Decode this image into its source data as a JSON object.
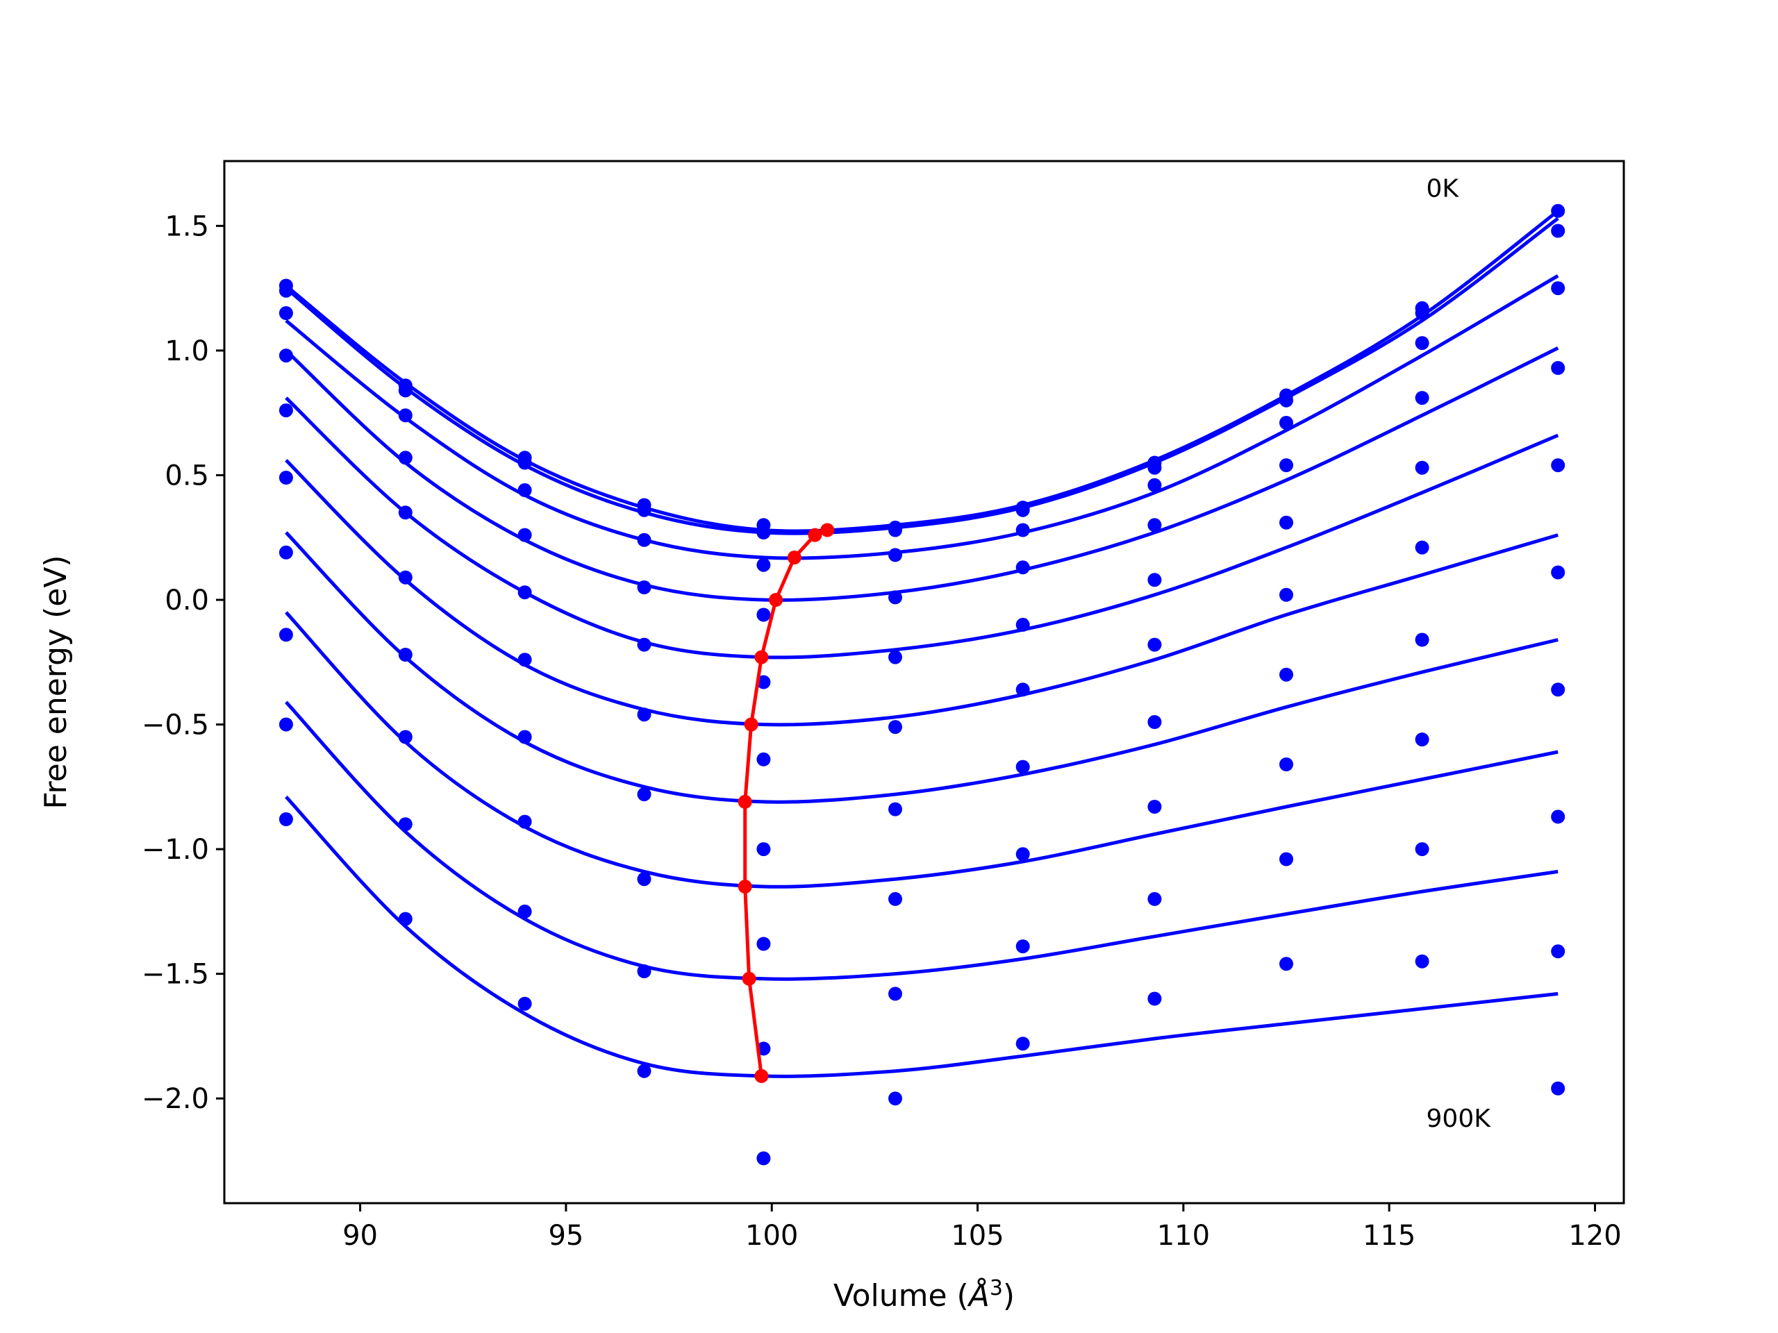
{
  "chart_data": {
    "type": "line",
    "title": "",
    "xlabel": "Volume (",
    "xlabel_unit": "Å",
    "xlabel_exponent": "3",
    "xlabel_close": ")",
    "ylabel": "Free energy (eV)",
    "xlim": [
      86.7,
      120.7
    ],
    "ylim": [
      -2.42,
      1.76
    ],
    "xticks": [
      90,
      95,
      100,
      105,
      110,
      115,
      120
    ],
    "xtick_labels": [
      "90",
      "95",
      "100",
      "105",
      "110",
      "115",
      "120"
    ],
    "yticks": [
      1.5,
      1.0,
      0.5,
      0.0,
      -0.5,
      -1.0,
      -1.5,
      -2.0
    ],
    "ytick_labels": [
      "1.5",
      "1.0",
      "0.5",
      "0.0",
      "−0.5",
      "−1.0",
      "−1.5",
      "−2.0"
    ],
    "grid": false,
    "annotations": [
      {
        "text": "0K",
        "x": 115.9,
        "y": 1.65
      },
      {
        "text": "900K",
        "x": 115.9,
        "y": -2.08
      }
    ],
    "colors": {
      "fit": "#0000ff",
      "data": "#0000ff",
      "minimum": "#ff0000"
    },
    "volumes": [
      88.2,
      91.1,
      94.0,
      96.9,
      99.8,
      103.0,
      106.1,
      109.3,
      112.5,
      115.8,
      119.1
    ],
    "series": [
      {
        "kind": "data",
        "values": [
          1.26,
          0.86,
          0.57,
          0.38,
          0.3,
          0.29,
          0.37,
          0.55,
          0.82,
          1.17,
          1.56
        ]
      },
      {
        "kind": "data",
        "values": [
          1.24,
          0.84,
          0.55,
          0.36,
          0.27,
          0.28,
          0.36,
          0.53,
          0.8,
          1.15,
          1.48
        ]
      },
      {
        "kind": "data",
        "values": [
          1.15,
          0.74,
          0.44,
          0.24,
          0.14,
          0.18,
          0.28,
          0.46,
          0.71,
          1.03,
          1.25
        ]
      },
      {
        "kind": "data",
        "values": [
          0.98,
          0.57,
          0.26,
          0.05,
          -0.06,
          0.01,
          0.13,
          0.3,
          0.54,
          0.81,
          0.93
        ]
      },
      {
        "kind": "data",
        "values": [
          0.76,
          0.35,
          0.03,
          -0.18,
          -0.33,
          -0.23,
          -0.1,
          0.08,
          0.31,
          0.53,
          0.54
        ]
      },
      {
        "kind": "data",
        "values": [
          0.49,
          0.09,
          -0.24,
          -0.46,
          -0.64,
          -0.51,
          -0.36,
          -0.18,
          0.02,
          0.21,
          0.11
        ]
      },
      {
        "kind": "data",
        "values": [
          0.19,
          -0.22,
          -0.55,
          -0.78,
          -1.0,
          -0.84,
          -0.67,
          -0.49,
          -0.3,
          -0.16,
          -0.36
        ]
      },
      {
        "kind": "data",
        "values": [
          -0.14,
          -0.55,
          -0.89,
          -1.12,
          -1.38,
          -1.2,
          -1.02,
          -0.83,
          -0.66,
          -0.56,
          -0.87
        ]
      },
      {
        "kind": "data",
        "values": [
          -0.5,
          -0.9,
          -1.25,
          -1.49,
          -1.8,
          -1.58,
          -1.39,
          -1.2,
          -1.04,
          -1.0,
          -1.41
        ]
      },
      {
        "kind": "data",
        "values": [
          -0.88,
          -1.28,
          -1.62,
          -1.89,
          -2.24,
          -2.0,
          -1.78,
          -1.6,
          -1.46,
          -1.45,
          -1.96
        ]
      }
    ],
    "fits": [
      {
        "x": [
          88.2,
          91.1,
          94.0,
          96.9,
          99.8,
          103.0,
          106.1,
          109.3,
          112.5,
          115.8,
          119.1
        ],
        "y": [
          1.26,
          0.87,
          0.56,
          0.37,
          0.28,
          0.3,
          0.38,
          0.56,
          0.82,
          1.14,
          1.56
        ]
      },
      {
        "x": [
          88.2,
          91.1,
          94.0,
          96.9,
          99.8,
          103.0,
          106.1,
          109.3,
          112.5,
          115.8,
          119.1
        ],
        "y": [
          1.25,
          0.85,
          0.54,
          0.35,
          0.27,
          0.29,
          0.37,
          0.55,
          0.81,
          1.12,
          1.53
        ]
      },
      {
        "x": [
          88.2,
          91.1,
          94.0,
          96.9,
          99.8,
          103.0,
          106.1,
          109.3,
          112.5,
          115.8,
          119.1
        ],
        "y": [
          1.12,
          0.73,
          0.42,
          0.24,
          0.17,
          0.19,
          0.27,
          0.43,
          0.68,
          0.98,
          1.3
        ]
      },
      {
        "x": [
          88.2,
          91.1,
          94.0,
          96.9,
          99.8,
          103.0,
          106.1,
          109.3,
          112.5,
          115.8,
          119.1
        ],
        "y": [
          1.0,
          0.55,
          0.24,
          0.06,
          0.0,
          0.03,
          0.12,
          0.27,
          0.48,
          0.74,
          1.01
        ]
      },
      {
        "x": [
          88.2,
          91.1,
          94.0,
          96.9,
          99.8,
          103.0,
          106.1,
          109.3,
          112.5,
          115.8,
          119.1
        ],
        "y": [
          0.81,
          0.35,
          0.03,
          -0.17,
          -0.23,
          -0.2,
          -0.12,
          0.02,
          0.21,
          0.43,
          0.66
        ]
      },
      {
        "x": [
          88.2,
          91.1,
          94.0,
          96.9,
          99.8,
          103.0,
          106.1,
          109.3,
          112.5,
          115.8,
          119.1
        ],
        "y": [
          0.56,
          0.08,
          -0.26,
          -0.44,
          -0.5,
          -0.47,
          -0.38,
          -0.24,
          -0.06,
          0.1,
          0.26
        ]
      },
      {
        "x": [
          88.2,
          91.1,
          94.0,
          96.9,
          99.8,
          103.0,
          106.1,
          109.3,
          112.5,
          115.8,
          119.1
        ],
        "y": [
          0.27,
          -0.23,
          -0.57,
          -0.75,
          -0.81,
          -0.78,
          -0.7,
          -0.58,
          -0.43,
          -0.29,
          -0.16
        ]
      },
      {
        "x": [
          88.2,
          91.1,
          94.0,
          96.9,
          99.8,
          103.0,
          106.1,
          109.3,
          112.5,
          115.8,
          119.1
        ],
        "y": [
          -0.05,
          -0.57,
          -0.91,
          -1.09,
          -1.15,
          -1.12,
          -1.05,
          -0.94,
          -0.83,
          -0.72,
          -0.61
        ]
      },
      {
        "x": [
          88.2,
          91.1,
          94.0,
          96.9,
          99.8,
          103.0,
          106.1,
          109.3,
          112.5,
          115.8,
          119.1
        ],
        "y": [
          -0.41,
          -0.93,
          -1.28,
          -1.47,
          -1.52,
          -1.5,
          -1.44,
          -1.35,
          -1.26,
          -1.17,
          -1.09
        ]
      },
      {
        "x": [
          88.2,
          91.1,
          94.0,
          96.9,
          99.8,
          103.0,
          106.1,
          109.3,
          112.5,
          115.8,
          119.1
        ],
        "y": [
          -0.79,
          -1.31,
          -1.66,
          -1.86,
          -1.91,
          -1.89,
          -1.83,
          -1.76,
          -1.7,
          -1.64,
          -1.58
        ]
      }
    ],
    "minimum_path": {
      "x": [
        101.35,
        101.05,
        100.55,
        100.1,
        99.75,
        99.5,
        99.35,
        99.35,
        99.45,
        99.75
      ],
      "y": [
        0.28,
        0.26,
        0.17,
        0.0,
        -0.23,
        -0.5,
        -0.81,
        -1.15,
        -1.52,
        -1.91
      ]
    }
  }
}
